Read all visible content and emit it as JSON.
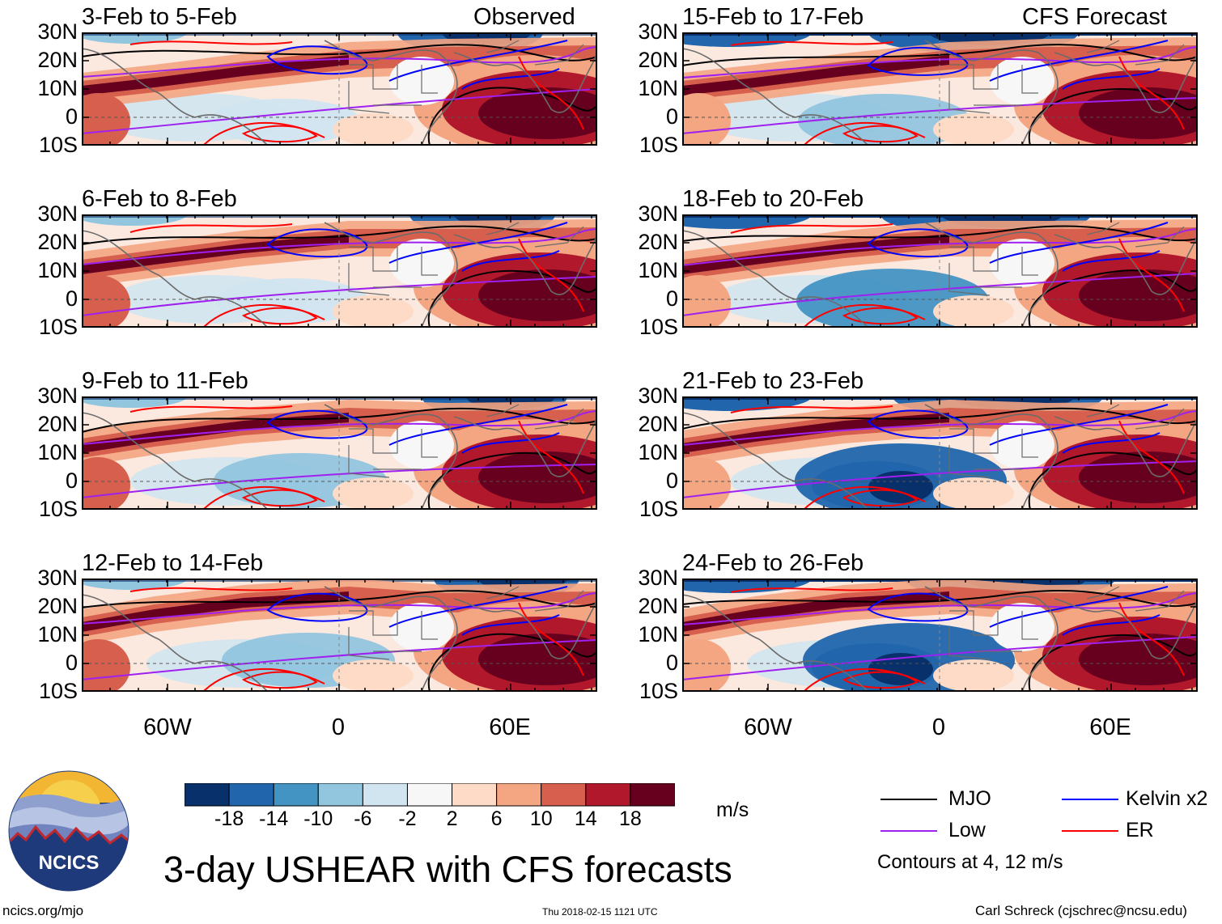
{
  "header": {
    "left_tag": "Observed",
    "right_tag": "CFS Forecast"
  },
  "axes": {
    "lat_labels": [
      "30N",
      "20N",
      "10N",
      "0",
      "10S"
    ],
    "lon_labels": [
      "60W",
      "0",
      "60E"
    ]
  },
  "panels": {
    "observed": [
      {
        "title": "3-Feb to 5-Feb"
      },
      {
        "title": "6-Feb to 8-Feb"
      },
      {
        "title": "9-Feb to 11-Feb"
      },
      {
        "title": "12-Feb to 14-Feb"
      }
    ],
    "forecast": [
      {
        "title": "15-Feb to 17-Feb"
      },
      {
        "title": "18-Feb to 20-Feb"
      },
      {
        "title": "21-Feb to 23-Feb"
      },
      {
        "title": "24-Feb to 26-Feb"
      }
    ]
  },
  "colorbar": {
    "labels": [
      "-18",
      "-14",
      "-10",
      "-6",
      "-2",
      "2",
      "6",
      "10",
      "14",
      "18"
    ],
    "colors": [
      "#08306b",
      "#2166ac",
      "#4393c3",
      "#92c5de",
      "#d1e5f0",
      "#f7f7f7",
      "#fddbc7",
      "#f4a582",
      "#d6604d",
      "#b2182b",
      "#67001f"
    ],
    "unit": "m/s"
  },
  "legend": {
    "items": [
      {
        "label": "MJO",
        "color": "#000000"
      },
      {
        "label": "Kelvin x2",
        "color": "#0000ff"
      },
      {
        "label": "Low",
        "color": "#a020f0"
      },
      {
        "label": "ER",
        "color": "#ff0000"
      }
    ],
    "contours_note": "Contours at 4, 12 m/s"
  },
  "footer": {
    "logo_text": "NCICS",
    "main_title": "3-day USHEAR with CFS forecasts",
    "website": "ncics.org/mjo",
    "timestamp": "Thu 2018-02-15 1121 UTC",
    "credit": "Carl Schreck (cjschrec@ncsu.edu)"
  }
}
